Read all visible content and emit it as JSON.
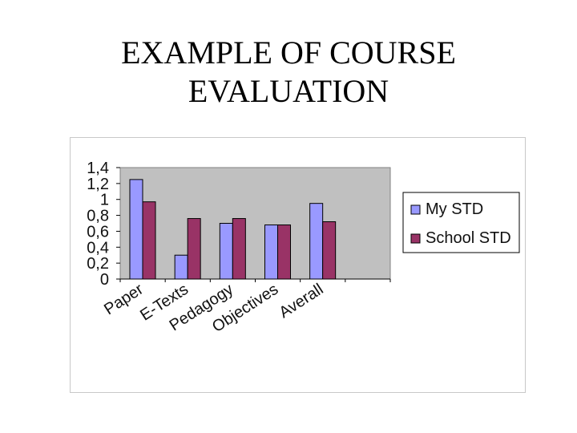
{
  "slide": {
    "title_line1": "EXAMPLE OF COURSE",
    "title_line2": "EVALUATION"
  },
  "chart_data": {
    "type": "bar",
    "categories": [
      "Paper",
      "E-Texts",
      "Pedagogy",
      "Objectives",
      "Averall"
    ],
    "series": [
      {
        "name": "My STD",
        "values": [
          1.25,
          0.3,
          0.7,
          0.68,
          0.95
        ],
        "color": "#9999ff"
      },
      {
        "name": "School STD",
        "values": [
          0.97,
          0.76,
          0.76,
          0.68,
          0.72
        ],
        "color": "#993366"
      }
    ],
    "ylim": [
      0,
      1.4
    ],
    "yticks": [
      "0",
      "0,2",
      "0,4",
      "0,6",
      "0,8",
      "1",
      "1,2",
      "1,4"
    ],
    "ytick_values": [
      0,
      0.2,
      0.4,
      0.6,
      0.8,
      1.0,
      1.2,
      1.4
    ],
    "plot_background": "#c0c0c0",
    "grid": false,
    "legend_position": "right"
  }
}
